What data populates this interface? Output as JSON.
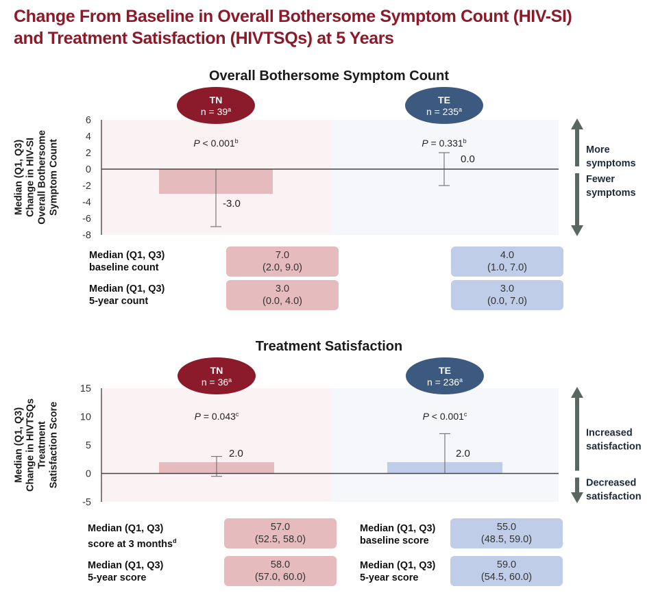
{
  "title_line1": "Change From Baseline in Overall Bothersome Symptom Count (HIV-SI)",
  "title_line2": "and Treatment Satisfaction (HIVTSQs) at 5 Years",
  "colors": {
    "title": "#8b1a2b",
    "tn_oval": "#8b1a2b",
    "te_oval": "#3c5a80",
    "tn_bar": "#e5bbbe",
    "te_bar": "#c0cde8",
    "tn_panel": "#faf2f3",
    "te_panel": "#f5f7fb",
    "arrow": "#5c6660"
  },
  "chart_data": [
    {
      "type": "bar",
      "title": "Overall Bothersome Symptom Count",
      "ylabel": [
        "Median (Q1, Q3)",
        "Change in HIV-SI",
        "Overall Bothersome",
        "Symptom Count"
      ],
      "ylim": [
        -8,
        6
      ],
      "yticks": [
        6,
        4,
        2,
        0,
        -2,
        -4,
        -6,
        -8
      ],
      "categories": [
        "TN",
        "TE"
      ],
      "groups": [
        {
          "name": "TN",
          "n_label": "n = 39",
          "n_sup": "a",
          "p_label": "< 0.001",
          "p_prefix": "P",
          "p_sup": "b",
          "median": -3.0,
          "q1": -7.0,
          "q3": 0.0,
          "value_label": "-3.0"
        },
        {
          "name": "TE",
          "n_label": "n = 235",
          "n_sup": "a",
          "p_label": "= 0.331",
          "p_prefix": "P",
          "p_sup": "b",
          "median": 0.0,
          "q1": -2.0,
          "q3": 2.0,
          "value_label": "0.0"
        }
      ],
      "direction_up": [
        "More",
        "symptoms"
      ],
      "direction_down": [
        "Fewer",
        "symptoms"
      ],
      "summary_rows": [
        {
          "label": [
            "Median (Q1, Q3)",
            "baseline count"
          ],
          "label_sup": "",
          "tn": [
            "7.0",
            "(2.0, 9.0)"
          ],
          "te": [
            "4.0",
            "(1.0, 7.0)"
          ]
        },
        {
          "label": [
            "Median (Q1, Q3)",
            "5-year count"
          ],
          "label_sup": "",
          "tn": [
            "3.0",
            "(0.0, 4.0)"
          ],
          "te": [
            "3.0",
            "(0.0, 7.0)"
          ]
        }
      ]
    },
    {
      "type": "bar",
      "title": "Treatment Satisfaction",
      "ylabel": [
        "Median (Q1, Q3)",
        "Change in HIVTSQs",
        "Treatment",
        "Satisfaction  Score"
      ],
      "ylim": [
        -5,
        15
      ],
      "yticks": [
        15,
        10,
        5,
        0,
        -5
      ],
      "categories": [
        "TN",
        "TE"
      ],
      "groups": [
        {
          "name": "TN",
          "n_label": "n = 36",
          "n_sup": "a",
          "p_label": "= 0.043",
          "p_prefix": "P",
          "p_sup": "c",
          "median": 2.0,
          "q1": -0.5,
          "q3": 3.0,
          "value_label": "2.0"
        },
        {
          "name": "TE",
          "n_label": "n = 236",
          "n_sup": "a",
          "p_label": "< 0.001",
          "p_prefix": "P",
          "p_sup": "c",
          "median": 2.0,
          "q1": 0.0,
          "q3": 7.0,
          "value_label": "2.0"
        }
      ],
      "direction_up": [
        "Increased",
        "satisfaction"
      ],
      "direction_down": [
        "Decreased",
        "satisfaction"
      ],
      "summary_rows": [
        {
          "tn_label": [
            "Median (Q1, Q3)",
            "score at 3 months"
          ],
          "tn_label_sup": "d",
          "tn": [
            "57.0",
            "(52.5, 58.0)"
          ],
          "te_label": [
            "Median (Q1, Q3)",
            "baseline score"
          ],
          "te": [
            "55.0",
            "(48.5, 59.0)"
          ]
        },
        {
          "tn_label": [
            "Median (Q1, Q3)",
            "5-year score"
          ],
          "tn_label_sup": "",
          "tn": [
            "58.0",
            "(57.0, 60.0)"
          ],
          "te_label": [
            "Median (Q1, Q3)",
            "5-year score"
          ],
          "te": [
            "59.0",
            "(54.5, 60.0)"
          ]
        }
      ]
    }
  ]
}
